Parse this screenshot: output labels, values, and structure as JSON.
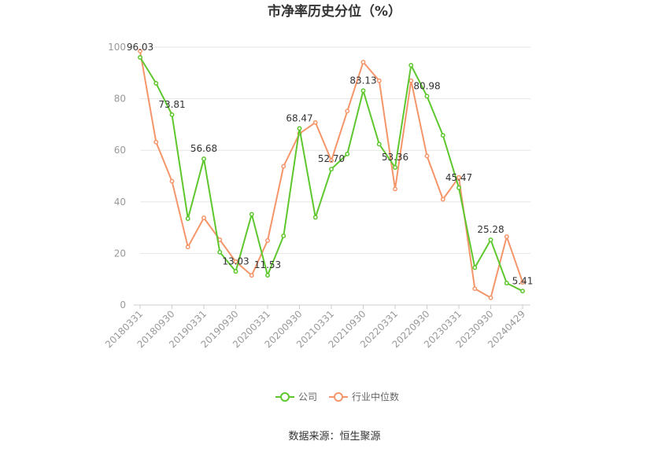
{
  "chart_data": {
    "type": "line",
    "title": "市净率历史分位（%）",
    "source": "数据来源：恒生聚源",
    "xlabel": "",
    "ylabel": "",
    "ylim": [
      0,
      100
    ],
    "yticks": [
      "0",
      "20",
      "40",
      "60",
      "80",
      "100"
    ],
    "x": [
      "20180331",
      "20180630",
      "20180930",
      "20181231",
      "20190331",
      "20190630",
      "20190930",
      "20191231",
      "20200331",
      "20200630",
      "20200930",
      "20201231",
      "20210331",
      "20210630",
      "20210930",
      "20211231",
      "20220331",
      "20220630",
      "20220930",
      "20221231",
      "20230331",
      "20230630",
      "20230930",
      "20231231",
      "20240429"
    ],
    "xtick_labels": [
      "20180331",
      "20180930",
      "20190331",
      "20190930",
      "20200331",
      "20200930",
      "20210331",
      "20210930",
      "20220331",
      "20220930",
      "20230331",
      "20230930",
      "20240429"
    ],
    "legend_position": "bottom",
    "grid": true,
    "series": [
      {
        "name": "公司",
        "color": "#5ec72e",
        "values": [
          96.03,
          86.0,
          73.81,
          33.5,
          56.68,
          20.5,
          13.03,
          35.2,
          11.53,
          26.8,
          68.47,
          34.0,
          52.7,
          58.6,
          83.13,
          62.4,
          53.36,
          93.0,
          80.98,
          65.8,
          45.47,
          14.5,
          25.28,
          8.5,
          5.41
        ]
      },
      {
        "name": "行业中位数",
        "color": "#f5956a",
        "values": [
          98.5,
          63.2,
          48.0,
          22.5,
          33.8,
          25.3,
          16.8,
          11.5,
          25.0,
          53.8,
          66.5,
          70.8,
          56.0,
          75.2,
          94.2,
          87.0,
          45.0,
          87.0,
          57.8,
          41.0,
          49.5,
          6.3,
          2.8,
          26.5,
          8.8
        ]
      }
    ],
    "data_labels": [
      {
        "series": 0,
        "index": 0,
        "text": "96.03"
      },
      {
        "series": 0,
        "index": 2,
        "text": "73.81"
      },
      {
        "series": 0,
        "index": 4,
        "text": "56.68"
      },
      {
        "series": 0,
        "index": 6,
        "text": "13.03"
      },
      {
        "series": 0,
        "index": 8,
        "text": "11.53"
      },
      {
        "series": 0,
        "index": 10,
        "text": "68.47"
      },
      {
        "series": 0,
        "index": 12,
        "text": "52.70"
      },
      {
        "series": 0,
        "index": 14,
        "text": "83.13"
      },
      {
        "series": 0,
        "index": 16,
        "text": "53.36"
      },
      {
        "series": 0,
        "index": 18,
        "text": "80.98"
      },
      {
        "series": 0,
        "index": 20,
        "text": "45.47"
      },
      {
        "series": 0,
        "index": 22,
        "text": "25.28"
      },
      {
        "series": 0,
        "index": 24,
        "text": "5.41"
      }
    ]
  }
}
